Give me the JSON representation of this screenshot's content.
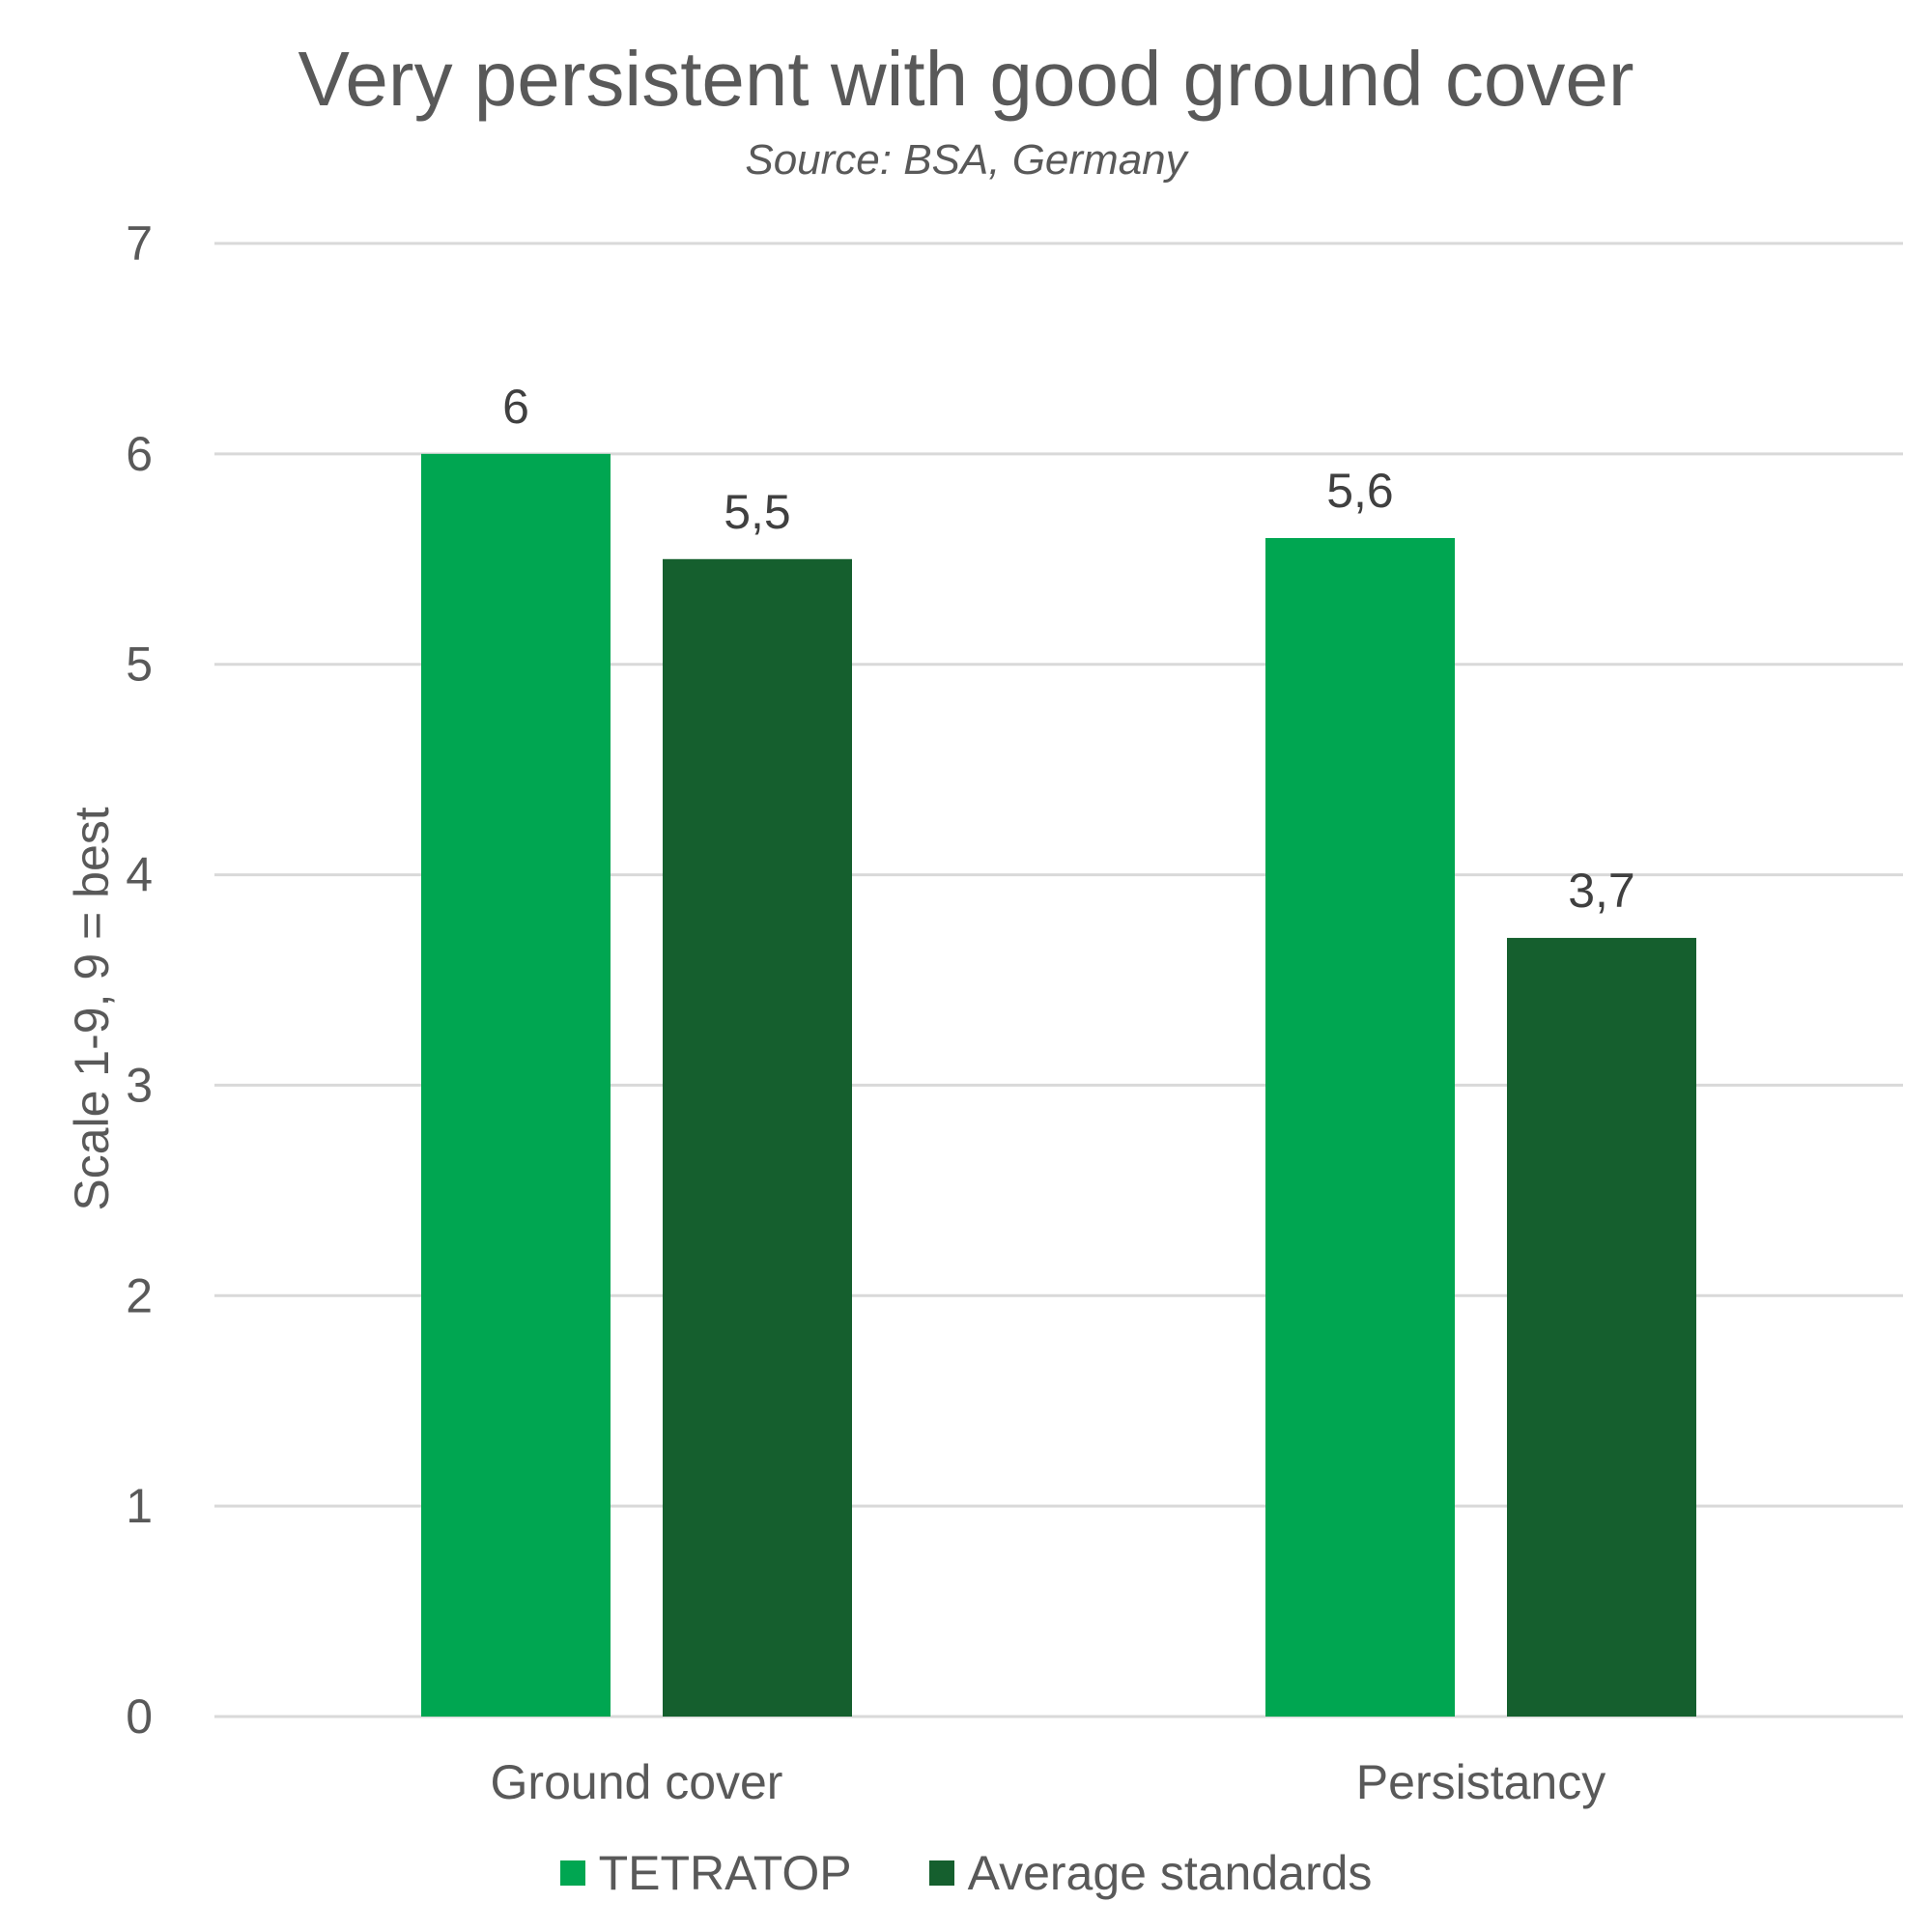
{
  "chart_data": {
    "type": "bar",
    "title": "Very persistent with good ground cover",
    "subtitle": "Source: BSA, Germany",
    "xlabel": "",
    "ylabel": "Scale 1-9, 9 = best",
    "ylim": [
      0,
      7
    ],
    "yticks": [
      "0",
      "1",
      "2",
      "3",
      "4",
      "5",
      "6",
      "7"
    ],
    "categories": [
      "Ground cover",
      "Persistancy"
    ],
    "series": [
      {
        "name": "TETRATOP",
        "color": "#00A651",
        "values": [
          6,
          5.6
        ],
        "labels": [
          "6",
          "5,6"
        ]
      },
      {
        "name": "Average standards",
        "color": "#155F2E",
        "values": [
          5.5,
          3.7
        ],
        "labels": [
          "5,5",
          "3,7"
        ]
      }
    ],
    "grid": true,
    "legend_position": "bottom"
  }
}
